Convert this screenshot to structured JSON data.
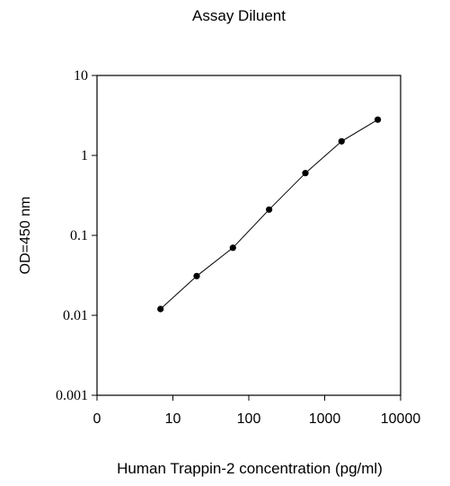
{
  "chart_data": {
    "type": "line",
    "title": "Assay Diluent",
    "xlabel": "Human Trappin-2 concentration (pg/ml)",
    "ylabel": "OD=450 nm",
    "x_scale": "log",
    "y_scale": "log",
    "xlim": [
      1,
      10000
    ],
    "ylim": [
      0.001,
      10
    ],
    "x_ticks": [
      "0",
      "10",
      "100",
      "1000",
      "10000"
    ],
    "y_ticks": [
      "10",
      "1",
      "0.1",
      "0.01",
      "0.001"
    ],
    "grid": false,
    "series": [
      {
        "x": [
          6.86,
          20.6,
          61.7,
          185,
          556,
          1667,
          5000
        ],
        "y": [
          0.012,
          0.031,
          0.07,
          0.21,
          0.6,
          1.5,
          2.8
        ]
      }
    ]
  }
}
